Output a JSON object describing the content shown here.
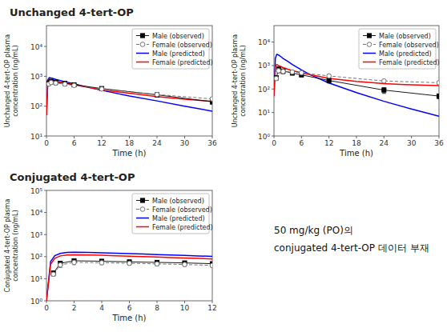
{
  "chart_data": [
    {
      "type": "line",
      "title": "Unchanged 4-tert-OP",
      "x_label": "Time (h)",
      "y_label": "Unchanged 4-tert-OP plasma concentration (ng/mL)",
      "log": "y",
      "grid": false,
      "legend": "upper right",
      "xlim": [
        0,
        36
      ],
      "xticks": [
        0,
        6,
        12,
        18,
        24,
        30,
        36
      ],
      "ylim": [
        10,
        50000
      ],
      "yticks": [
        {
          "value": 10,
          "label": "10¹"
        },
        {
          "value": 100,
          "label": "10²"
        },
        {
          "value": 1000,
          "label": "10³"
        },
        {
          "value": 10000,
          "label": "10⁴"
        }
      ],
      "series": [
        {
          "name": "Male (observed)",
          "color": "#000000",
          "marker": "square",
          "line_style": "solid",
          "x": [
            0.5,
            1,
            2,
            4,
            6,
            12,
            24,
            36
          ],
          "values": [
            600,
            680,
            640,
            580,
            520,
            390,
            240,
            140
          ],
          "errors": [
            80,
            100,
            90,
            70,
            60,
            55,
            35,
            25
          ]
        },
        {
          "name": "Female (observed)",
          "color": "#666666",
          "marker": "open-circle",
          "line_style": "dashed",
          "x": [
            0.5,
            1,
            2,
            4,
            6,
            12,
            24,
            36
          ],
          "values": [
            550,
            620,
            590,
            545,
            495,
            375,
            245,
            175
          ],
          "errors": [
            70,
            85,
            80,
            60,
            55,
            45,
            30,
            22
          ]
        },
        {
          "name": "Male (predicted)",
          "color": "#0000FF",
          "line_style": "solid",
          "x": [
            0,
            0.3,
            0.6,
            1,
            1.5,
            2,
            3,
            4,
            6,
            8,
            12,
            18,
            24,
            30,
            36
          ],
          "values": [
            50,
            750,
            900,
            880,
            840,
            790,
            720,
            660,
            560,
            470,
            340,
            220,
            150,
            100,
            68
          ]
        },
        {
          "name": "Female (predicted)",
          "color": "#FF0000",
          "line_style": "solid",
          "x": [
            0,
            0.3,
            0.6,
            1,
            1.5,
            2,
            3,
            4,
            6,
            8,
            12,
            18,
            24,
            30,
            36
          ],
          "values": [
            50,
            680,
            780,
            750,
            720,
            690,
            640,
            600,
            530,
            460,
            350,
            270,
            210,
            170,
            145
          ]
        }
      ]
    },
    {
      "type": "line",
      "x_label": "Time (h)",
      "y_label": "Unchanged 4-tert-OP plasma concentration (ng/mL)",
      "log": "y",
      "grid": false,
      "legend": "upper right",
      "xlim": [
        0,
        36
      ],
      "xticks": [
        0,
        6,
        12,
        18,
        24,
        30,
        36
      ],
      "ylim": [
        1,
        50000
      ],
      "yticks": [
        {
          "value": 1,
          "label": "10⁰"
        },
        {
          "value": 10,
          "label": "10¹"
        },
        {
          "value": 100,
          "label": "10²"
        },
        {
          "value": 1000,
          "label": "10³"
        },
        {
          "value": 10000,
          "label": "10⁴"
        }
      ],
      "series": [
        {
          "name": "Male (observed)",
          "color": "#000000",
          "marker": "square",
          "line_style": "solid",
          "x": [
            0.5,
            1,
            2,
            4,
            6,
            12,
            24,
            36
          ],
          "values": [
            300,
            700,
            580,
            480,
            400,
            230,
            90,
            50
          ],
          "errors": [
            60,
            180,
            130,
            90,
            70,
            50,
            25,
            12
          ]
        },
        {
          "name": "Female (observed)",
          "color": "#666666",
          "marker": "open-circle",
          "line_style": "dashed",
          "x": [
            0.5,
            1,
            2,
            4,
            6,
            12,
            24,
            36
          ],
          "values": [
            280,
            600,
            560,
            530,
            490,
            360,
            220,
            185
          ],
          "errors": [
            50,
            140,
            110,
            85,
            65,
            55,
            35,
            28
          ]
        },
        {
          "name": "Male (predicted)",
          "color": "#0000FF",
          "line_style": "solid",
          "x": [
            0,
            0.3,
            0.6,
            1,
            1.5,
            2,
            3,
            4,
            6,
            8,
            12,
            18,
            24,
            30,
            36
          ],
          "values": [
            50,
            2000,
            3000,
            2800,
            2400,
            2000,
            1500,
            1100,
            650,
            400,
            180,
            70,
            30,
            14,
            7
          ]
        },
        {
          "name": "Female (predicted)",
          "color": "#FF0000",
          "line_style": "solid",
          "x": [
            0,
            0.3,
            0.6,
            1,
            1.5,
            2,
            3,
            4,
            6,
            8,
            12,
            18,
            24,
            30,
            36
          ],
          "values": [
            50,
            900,
            1100,
            1000,
            900,
            820,
            700,
            610,
            490,
            400,
            285,
            210,
            170,
            150,
            140
          ]
        }
      ]
    },
    {
      "type": "line",
      "title": "Conjugated 4-tert-OP",
      "x_label": "Time (h)",
      "y_label": "Conjugated 4-tert-OP plasma concentration (ng/mL)",
      "log": "y",
      "grid": false,
      "legend": "upper right",
      "xlim": [
        0,
        12
      ],
      "xticks": [
        0,
        2,
        4,
        6,
        8,
        10,
        12
      ],
      "ylim": [
        1,
        100000
      ],
      "yticks": [
        {
          "value": 1,
          "label": "10⁰"
        },
        {
          "value": 10,
          "label": "10¹"
        },
        {
          "value": 100,
          "label": "10²"
        },
        {
          "value": 1000,
          "label": "10³"
        },
        {
          "value": 10000,
          "label": "10⁴"
        },
        {
          "value": 100000,
          "label": "10⁵"
        }
      ],
      "annotations": [
        "50 mg/kg (PO)의",
        "conjugated 4-tert-OP 데이터 부재"
      ],
      "series": [
        {
          "name": "Male (observed)",
          "color": "#000000",
          "marker": "square",
          "line_style": "solid",
          "x": [
            0.5,
            1,
            2,
            4,
            6,
            8,
            10,
            12
          ],
          "values": [
            18,
            50,
            65,
            62,
            58,
            55,
            52,
            48
          ],
          "errors": [
            4,
            12,
            14,
            12,
            10,
            10,
            9,
            9
          ]
        },
        {
          "name": "Female (observed)",
          "color": "#666666",
          "marker": "open-circle",
          "line_style": "dashed",
          "x": [
            0.5,
            1,
            2,
            4,
            6,
            8,
            10,
            12
          ],
          "values": [
            16,
            42,
            55,
            53,
            50,
            47,
            44,
            40
          ],
          "errors": [
            3,
            10,
            12,
            10,
            9,
            9,
            8,
            7
          ]
        },
        {
          "name": "Male (predicted)",
          "color": "#0000FF",
          "line_style": "solid",
          "x": [
            0,
            0.3,
            0.6,
            1,
            1.5,
            2,
            3,
            4,
            5,
            6,
            7,
            8,
            9,
            10,
            11,
            12
          ],
          "values": [
            1,
            60,
            110,
            140,
            155,
            158,
            155,
            150,
            143,
            137,
            131,
            125,
            119,
            114,
            108,
            103
          ]
        },
        {
          "name": "Female (predicted)",
          "color": "#FF0000",
          "line_style": "solid",
          "x": [
            0,
            0.3,
            0.6,
            1,
            1.5,
            2,
            3,
            4,
            5,
            6,
            7,
            8,
            9,
            10,
            11,
            12
          ],
          "values": [
            1,
            45,
            85,
            108,
            118,
            120,
            118,
            115,
            110,
            105,
            100,
            96,
            91,
            87,
            83,
            79
          ]
        }
      ]
    }
  ]
}
